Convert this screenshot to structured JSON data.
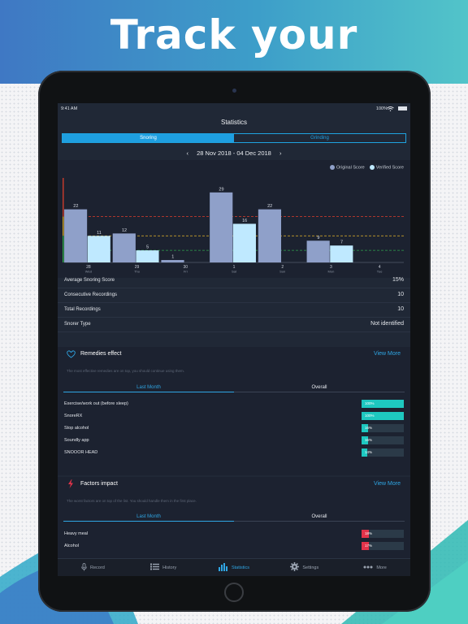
{
  "promo": {
    "headline": "Track your progress"
  },
  "status": {
    "time": "9:41 AM",
    "battery": "100%"
  },
  "screen_title": "Statistics",
  "segments": [
    {
      "label": "Snoring",
      "active": true
    },
    {
      "label": "Grinding",
      "active": false
    }
  ],
  "date_range": {
    "label": "28 Nov 2018 - 04 Dec 2018",
    "prev_icon": "chevron-left-icon",
    "next_icon": "chevron-right-icon"
  },
  "legend": [
    {
      "label": "Original Score",
      "color": "#8fa0c9"
    },
    {
      "label": "Verified Score",
      "color": "#bfe9ff"
    }
  ],
  "chart_data": {
    "type": "bar",
    "categories": [
      [
        "28",
        "Wed"
      ],
      [
        "29",
        "Thu"
      ],
      [
        "30",
        "Fri"
      ],
      [
        "1",
        "Sat"
      ],
      [
        "2",
        "Sun"
      ],
      [
        "3",
        "Mon"
      ],
      [
        "4",
        "Tue"
      ]
    ],
    "series": [
      {
        "name": "Original Score",
        "values": [
          22,
          12,
          1,
          29,
          22,
          9,
          null
        ],
        "color": "#8fa0c9"
      },
      {
        "name": "Verified Score",
        "values": [
          11,
          5,
          null,
          16,
          null,
          7,
          null
        ],
        "color": "#bfe9ff"
      }
    ],
    "ylim": [
      0,
      35
    ],
    "thresholds": [
      {
        "value": 19,
        "color": "#c0392b"
      },
      {
        "value": 11,
        "color": "#c7a02a"
      },
      {
        "value": 5,
        "color": "#2ea24b"
      }
    ],
    "band_colors": [
      "#c0392b",
      "#c7a02a",
      "#2ea24b"
    ]
  },
  "summary": [
    {
      "label": "Average Snoring Score",
      "value": "15%"
    },
    {
      "label": "Consecutive Recordings",
      "value": "10"
    },
    {
      "label": "Total Recordings",
      "value": "10"
    },
    {
      "label": "Snorer Type",
      "value": "Not identified"
    }
  ],
  "remedies": {
    "title": "Remedies effect",
    "view_more": "View More",
    "note": "The most effective remedies are on top, you should continue using them.",
    "tabs": [
      "Last Month",
      "Overall"
    ],
    "items": [
      {
        "name": "Exercise/work out (before sleep)",
        "percent_label": "100%",
        "level": 1.0
      },
      {
        "name": "SnoreRX",
        "percent_label": "100%",
        "level": 1.0
      },
      {
        "name": "Stop alcohol",
        "percent_label": "16%",
        "level": 0.16
      },
      {
        "name": "Soundly app",
        "percent_label": "16%",
        "level": 0.16
      },
      {
        "name": "SNOOOR HEAD",
        "percent_label": "14%",
        "level": 0.14
      }
    ],
    "bar_color": "#1ec8c0"
  },
  "factors": {
    "title": "Factors impact",
    "view_more": "View More",
    "note": "The worst factors are on top of the list. You should handle them in the first place.",
    "tabs": [
      "Last Month",
      "Overall"
    ],
    "items": [
      {
        "name": "Heavy meal",
        "percent_label": "18%",
        "level": 0.18
      },
      {
        "name": "Alcohol",
        "percent_label": "17%",
        "level": 0.17
      }
    ],
    "bar_color": "#e2334a"
  },
  "tabbar": [
    {
      "label": "Record",
      "icon": "microphone-icon",
      "active": false
    },
    {
      "label": "History",
      "icon": "list-icon",
      "active": false
    },
    {
      "label": "Statistics",
      "icon": "bar-chart-icon",
      "active": true
    },
    {
      "label": "Settings",
      "icon": "gear-icon",
      "active": false
    },
    {
      "label": "More",
      "icon": "more-dots-icon",
      "active": false
    }
  ]
}
